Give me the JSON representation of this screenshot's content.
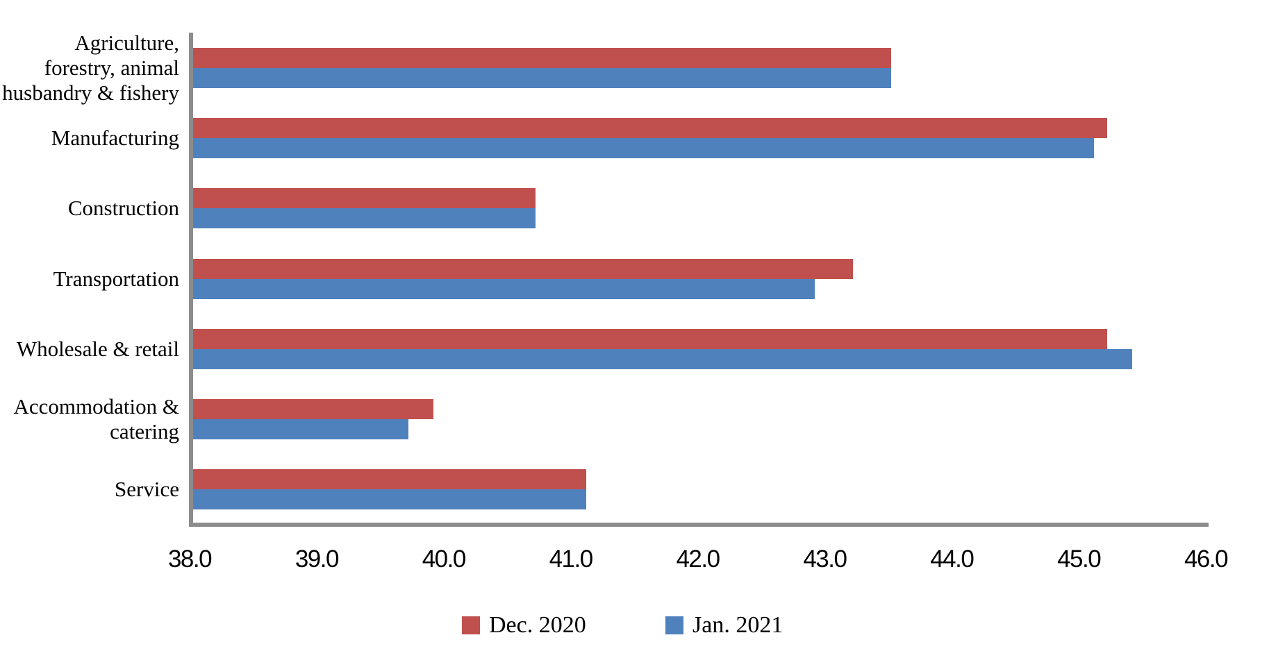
{
  "chart_data": {
    "type": "bar",
    "orientation": "horizontal",
    "title": "",
    "xlabel": "",
    "ylabel": "",
    "grid": false,
    "legend_position": "bottom",
    "background_color": "#FFFFFF",
    "axis_color": "#8C8C8C",
    "categories": [
      "Agriculture,\nforestry, animal\nhusbandry & fishery",
      "Manufacturing",
      "Construction",
      "Transportation",
      "Wholesale & retail",
      "Accommodation &\ncatering",
      "Service"
    ],
    "series": [
      {
        "name": "Dec. 2020",
        "color": "#C0504D",
        "values": [
          43.5,
          45.2,
          40.7,
          43.2,
          45.2,
          39.9,
          41.1
        ]
      },
      {
        "name": "Jan. 2021",
        "color": "#4F81BD",
        "values": [
          43.5,
          45.1,
          40.7,
          42.9,
          45.4,
          39.7,
          41.1
        ]
      }
    ],
    "xlim": [
      38.0,
      46.0
    ],
    "x_tick_step": 1.0,
    "x_tick_labels": [
      "38.0",
      "39.0",
      "40.0",
      "41.0",
      "42.0",
      "43.0",
      "44.0",
      "45.0",
      "46.0"
    ]
  }
}
